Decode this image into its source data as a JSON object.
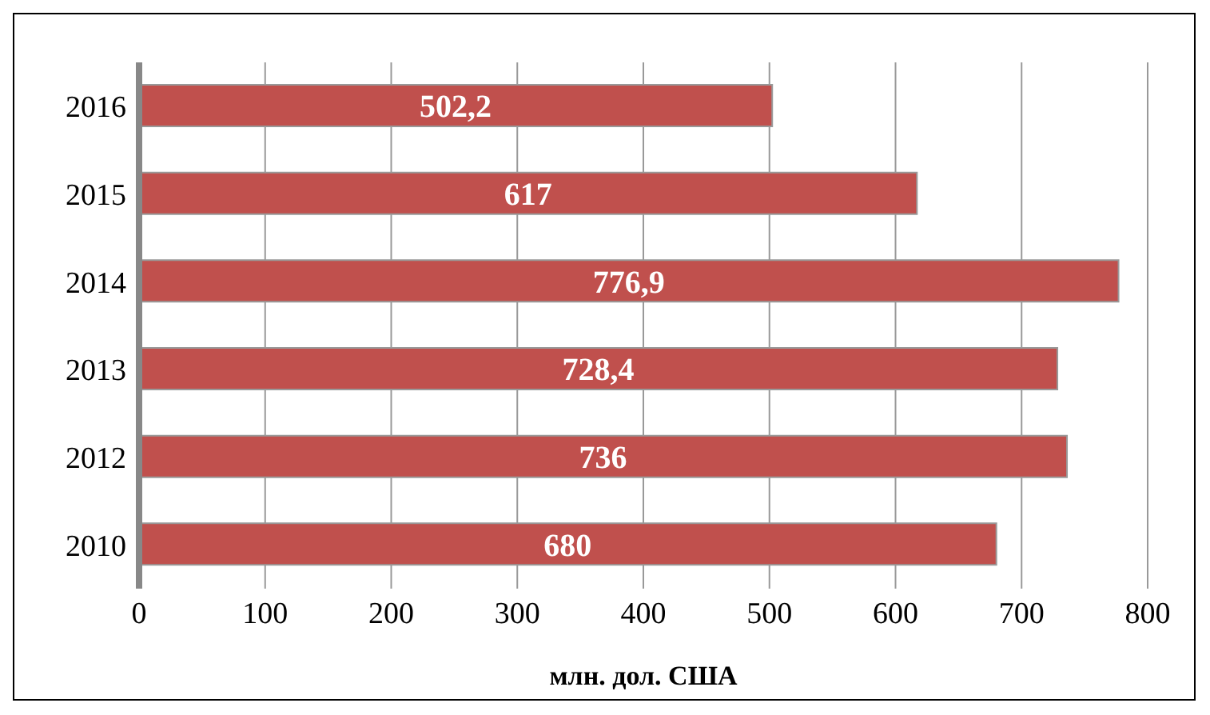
{
  "chart_data": {
    "type": "bar",
    "orientation": "horizontal",
    "xlabel": "млн. дол. США",
    "categories": [
      "2016",
      "2015",
      "2014",
      "2013",
      "2012",
      "2010"
    ],
    "values": [
      502.2,
      617,
      776.9,
      728.4,
      736,
      680
    ],
    "value_labels": [
      "502,2",
      "617",
      "776,9",
      "728,4",
      "736",
      "680"
    ],
    "color": "#c0504d",
    "xlim": [
      0,
      800
    ],
    "xticks": [
      0,
      100,
      200,
      300,
      400,
      500,
      600,
      700,
      800
    ],
    "grid": "x"
  }
}
